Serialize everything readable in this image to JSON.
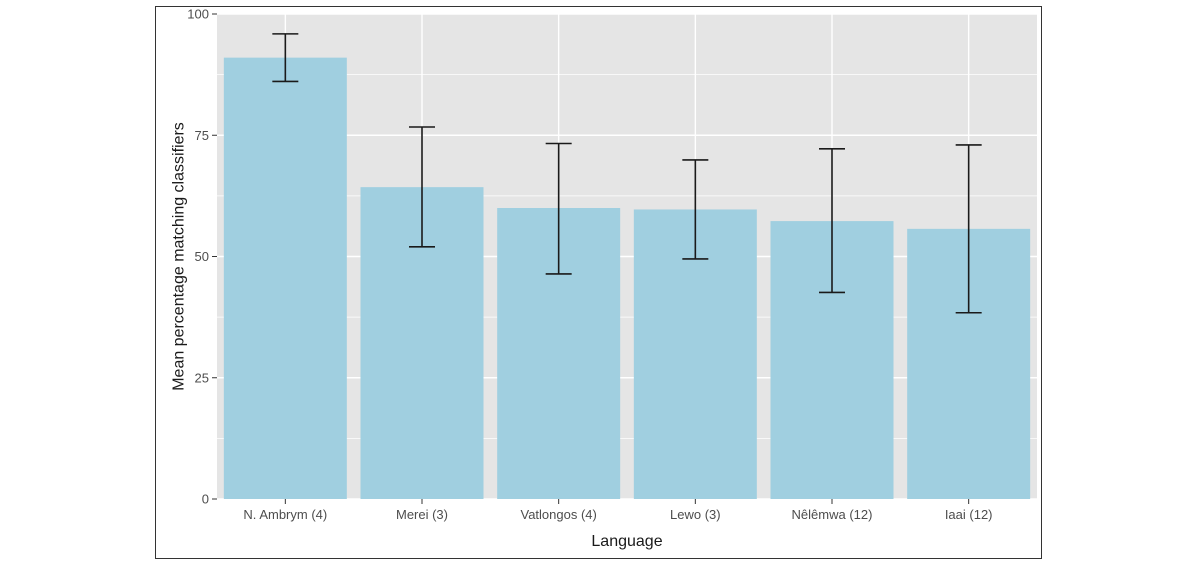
{
  "chart_data": {
    "type": "bar",
    "xlabel": "Language",
    "ylabel": "Mean percentage matching classifiers",
    "ylim": [
      0,
      100
    ],
    "yticks": [
      0,
      25,
      50,
      75,
      100
    ],
    "categories": [
      "N. Ambrym (4)",
      "Merei (3)",
      "Vatlongos (4)",
      "Lewo (3)",
      "Nêlêmwa (12)",
      "Iaai (12)"
    ],
    "values": [
      91,
      64.3,
      60,
      59.7,
      57.3,
      55.7
    ],
    "error_low": [
      86.1,
      52,
      46.4,
      49.5,
      42.6,
      38.4
    ],
    "error_high": [
      95.9,
      76.7,
      73.3,
      69.9,
      72.2,
      73
    ],
    "grid": true,
    "legend": "none",
    "colors": {
      "bar": "#a0cfe0",
      "panel": "#e5e5e5",
      "grid": "#ffffff",
      "errorbar": "#1a1a1a"
    }
  }
}
